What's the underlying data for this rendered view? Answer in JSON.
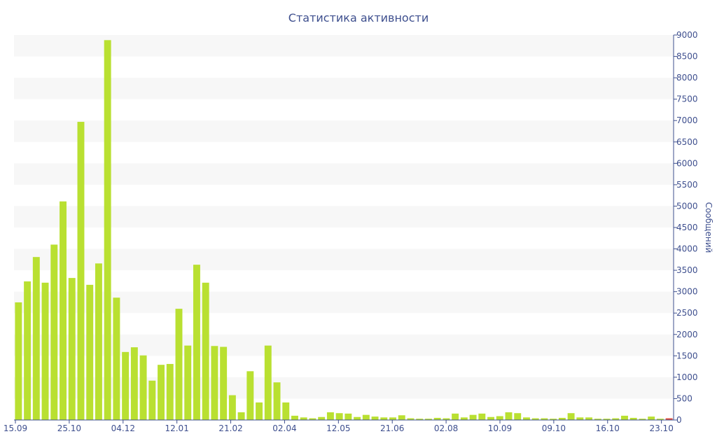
{
  "chart_data": {
    "type": "bar",
    "title": "Статистика активности",
    "xlabel": "",
    "ylabel": "Сообщений",
    "ylim": [
      0,
      9000
    ],
    "y_axis_position": "right",
    "y_ticks": [
      0,
      500,
      1000,
      1500,
      2000,
      2500,
      3000,
      3500,
      4000,
      4500,
      5000,
      5500,
      6000,
      6500,
      7000,
      7500,
      8000,
      8500,
      9000
    ],
    "x_tick_labels": [
      "15.09",
      "25.10",
      "04.12",
      "12.01",
      "21.02",
      "02.04",
      "12.05",
      "21.06",
      "02.08",
      "10.09",
      "09.10",
      "16.10",
      "23.10"
    ],
    "grid": "horizontal-bands",
    "colors": {
      "bar": "#b9e031",
      "last_bar": "#e14b3b",
      "band": "#f7f7f7",
      "axis": "#3e4f8e",
      "text": "#3e4f8e"
    },
    "values": [
      2750,
      3240,
      3810,
      3210,
      4100,
      5110,
      3320,
      6970,
      3160,
      3660,
      8880,
      2860,
      1590,
      1700,
      1510,
      920,
      1290,
      1310,
      2600,
      1740,
      3630,
      3210,
      1730,
      1710,
      580,
      180,
      1140,
      410,
      1740,
      880,
      410,
      100,
      60,
      40,
      70,
      180,
      160,
      150,
      70,
      120,
      80,
      60,
      60,
      110,
      40,
      30,
      30,
      50,
      40,
      150,
      60,
      120,
      150,
      70,
      90,
      180,
      160,
      60,
      40,
      40,
      30,
      50,
      160,
      60,
      60,
      30,
      30,
      40,
      100,
      50,
      30,
      80,
      30,
      40
    ]
  }
}
